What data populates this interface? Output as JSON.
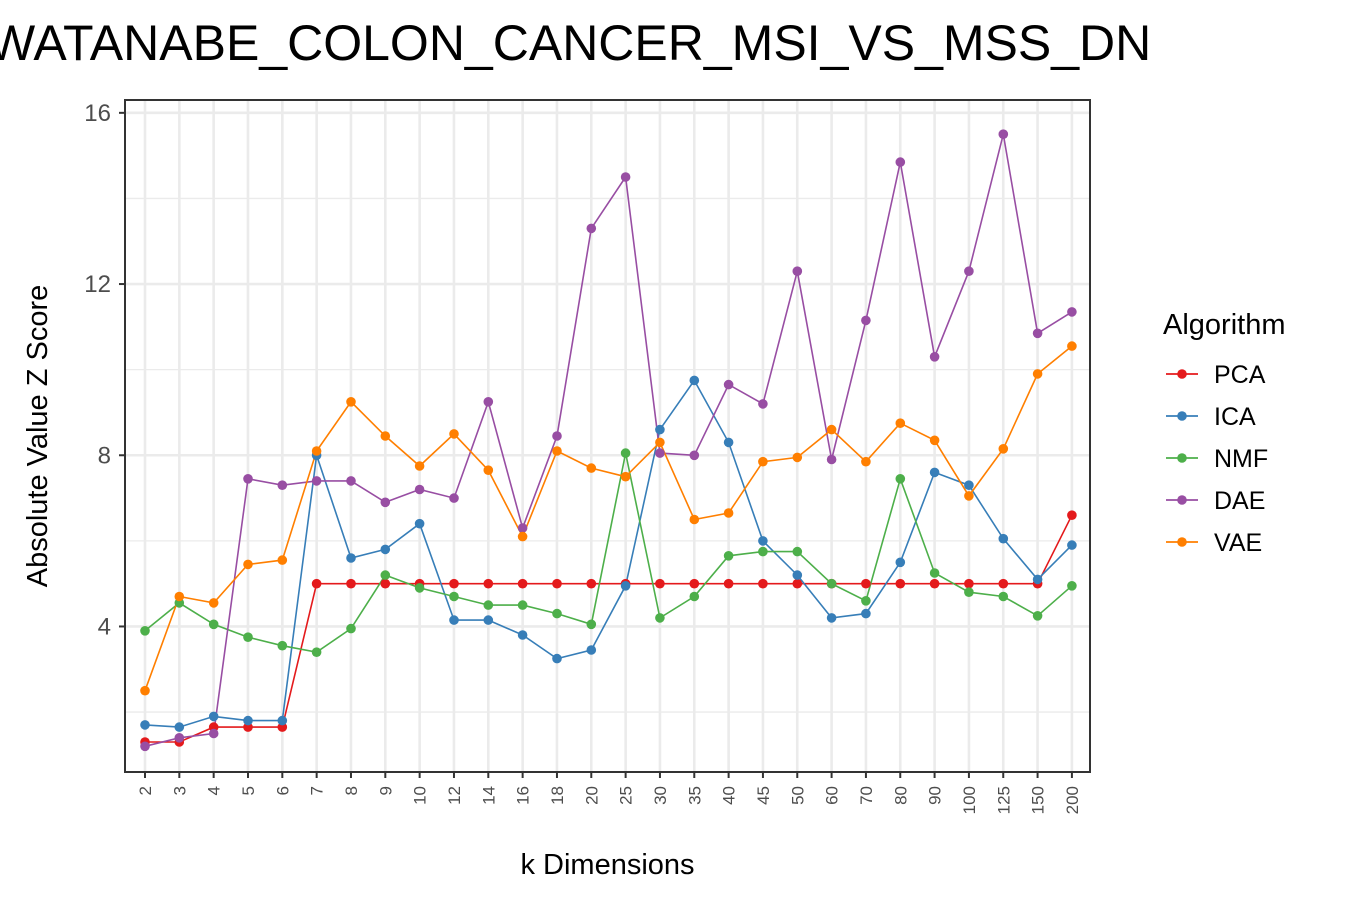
{
  "chart_data": {
    "type": "line",
    "title": "WATANABE_COLON_CANCER_MSI_VS_MSS_DN",
    "xlabel": "k Dimensions",
    "ylabel": "Absolute Value Z Score",
    "categories": [
      "2",
      "3",
      "4",
      "5",
      "6",
      "7",
      "8",
      "9",
      "10",
      "12",
      "14",
      "16",
      "18",
      "20",
      "25",
      "30",
      "35",
      "40",
      "45",
      "50",
      "60",
      "70",
      "80",
      "90",
      "100",
      "125",
      "150",
      "200"
    ],
    "yticks": [
      4,
      8,
      12,
      16
    ],
    "ylim": [
      0.6,
      16.3
    ],
    "grid": true,
    "legend": {
      "title": "Algorithm",
      "position": "right"
    },
    "series": [
      {
        "name": "PCA",
        "color": "#E41A1C",
        "values": [
          1.3,
          1.3,
          1.65,
          1.65,
          1.65,
          5.0,
          5.0,
          5.0,
          5.0,
          5.0,
          5.0,
          5.0,
          5.0,
          5.0,
          5.0,
          5.0,
          5.0,
          5.0,
          5.0,
          5.0,
          5.0,
          5.0,
          5.0,
          5.0,
          5.0,
          5.0,
          5.0,
          6.6
        ]
      },
      {
        "name": "ICA",
        "color": "#377EB8",
        "values": [
          1.7,
          1.65,
          1.9,
          1.8,
          1.8,
          8.0,
          5.6,
          5.8,
          6.4,
          4.15,
          4.15,
          3.8,
          3.25,
          3.45,
          4.95,
          8.6,
          9.75,
          8.3,
          6.0,
          5.2,
          4.2,
          4.3,
          5.5,
          7.6,
          7.3,
          6.05,
          5.1,
          5.9
        ]
      },
      {
        "name": "NMF",
        "color": "#4DAF4A",
        "values": [
          3.9,
          4.55,
          4.05,
          3.75,
          3.55,
          3.4,
          3.95,
          5.2,
          4.9,
          4.7,
          4.5,
          4.5,
          4.3,
          4.05,
          8.05,
          4.2,
          4.7,
          5.65,
          5.75,
          5.75,
          5.0,
          4.6,
          7.45,
          5.25,
          4.8,
          4.7,
          4.25,
          4.95
        ]
      },
      {
        "name": "DAE",
        "color": "#984EA3",
        "values": [
          1.2,
          1.4,
          1.5,
          7.45,
          7.3,
          7.4,
          7.4,
          6.9,
          7.2,
          7.0,
          9.25,
          6.3,
          8.45,
          13.3,
          14.5,
          8.05,
          8.0,
          9.65,
          9.2,
          12.3,
          7.9,
          11.15,
          14.85,
          10.3,
          12.3,
          15.5,
          10.85,
          11.35
        ]
      },
      {
        "name": "VAE",
        "color": "#FF7F00",
        "values": [
          2.5,
          4.7,
          4.55,
          5.45,
          5.55,
          8.1,
          9.25,
          8.45,
          7.75,
          8.5,
          7.65,
          6.1,
          8.1,
          7.7,
          7.5,
          8.3,
          6.5,
          6.65,
          7.85,
          7.95,
          8.6,
          7.85,
          8.75,
          8.35,
          7.05,
          8.15,
          9.9,
          10.55
        ]
      }
    ]
  }
}
